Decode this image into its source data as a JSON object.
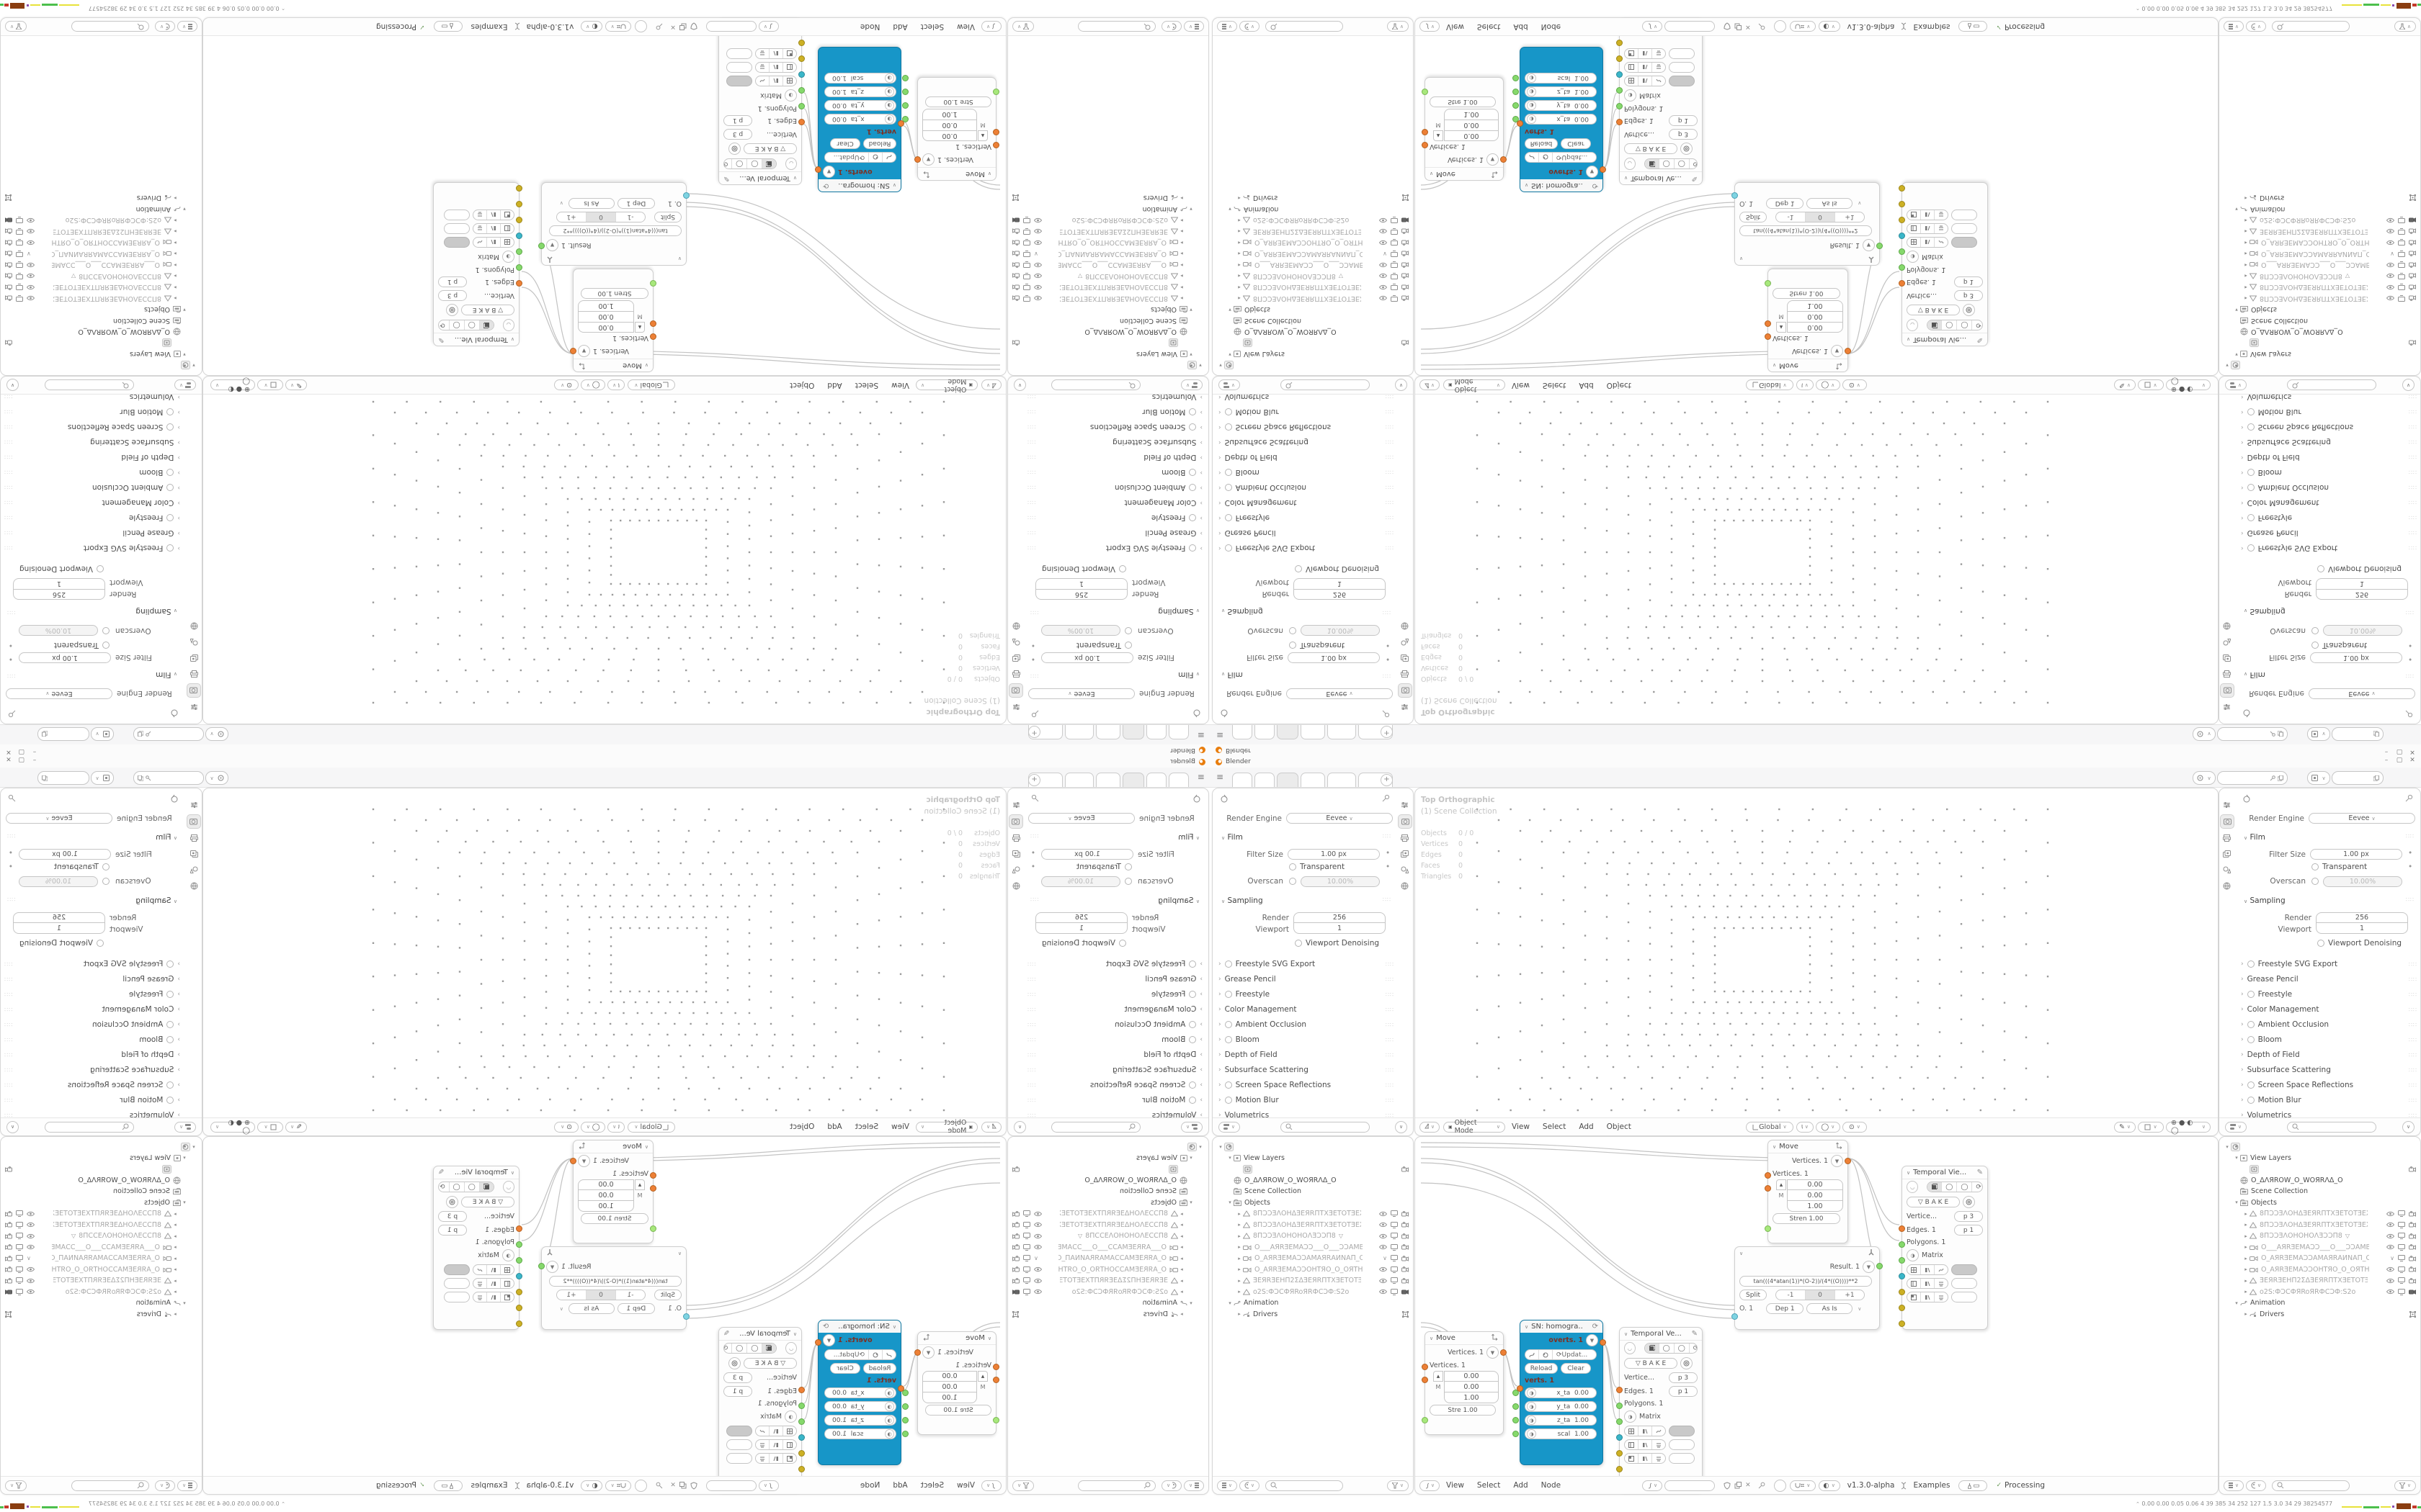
{
  "window": {
    "title": "Blender",
    "controls": [
      "–",
      "▢",
      "✕"
    ]
  },
  "topbar": {
    "tabs": [
      "",
      "",
      "",
      "",
      "",
      ""
    ],
    "active_tab": 2,
    "new_tab": "+"
  },
  "properties": {
    "engine_label": "Render Engine",
    "engine_value": "Eevee",
    "film": {
      "title": "Film",
      "filter_label": "Filter Size",
      "filter_value": "1.00 px",
      "transparent": "Transparent",
      "overscan_label": "Overscan",
      "overscan_value": "10.00%"
    },
    "sampling": {
      "title": "Sampling",
      "render_label": "Render",
      "render_value": "256",
      "viewport_label": "Viewport",
      "viewport_value": "1",
      "denoise": "Viewport Denoising"
    },
    "collapsed": [
      {
        "label": "Freestyle SVG Export",
        "cb": true
      },
      {
        "label": "Grease Pencil",
        "cb": false
      },
      {
        "label": "Freestyle",
        "cb": true
      },
      {
        "label": "Color Management",
        "cb": false
      },
      {
        "label": "Ambient Occlusion",
        "cb": true
      },
      {
        "label": "Bloom",
        "cb": true
      },
      {
        "label": "Depth of Field",
        "cb": false
      },
      {
        "label": "Subsurface Scattering",
        "cb": false
      },
      {
        "label": "Screen Space Reflections",
        "cb": true
      },
      {
        "label": "Motion Blur",
        "cb": true
      },
      {
        "label": "Volumetrics",
        "cb": false
      }
    ]
  },
  "viewport": {
    "overlay1": "Top Orthographic",
    "overlay2": "(1) Scene Collection",
    "stats": [
      {
        "l": "Objects",
        "v": "0 / 0"
      },
      {
        "l": "Vertices",
        "v": "0"
      },
      {
        "l": "Edges",
        "v": "0"
      },
      {
        "l": "Faces",
        "v": "0"
      },
      {
        "l": "Triangles",
        "v": "0"
      }
    ],
    "mode": "Object Mode",
    "menus": [
      "View",
      "Select",
      "Add",
      "Object"
    ],
    "orientation": "Global"
  },
  "outliner": {
    "search_placeholder": "",
    "tree": [
      {
        "d": 0,
        "icon": "blend",
        "label": "",
        "exp": "▾"
      },
      {
        "d": 1,
        "icon": "vlayer",
        "label": "View Layers",
        "exp": "▾"
      },
      {
        "d": 2,
        "icon": "vlayerbox",
        "label": "",
        "right": [
          "cam"
        ]
      },
      {
        "d": 1,
        "icon": "world",
        "label": "O_ΔΛЯROW_O_WOЯRΛΔ_O"
      },
      {
        "d": 1,
        "icon": "coll",
        "label": "Scene Collection"
      },
      {
        "d": 1,
        "icon": "coll",
        "label": "Objects",
        "exp": "▾"
      },
      {
        "d": 2,
        "icon": "mesh",
        "label": "8ΠƆƆƎΛΟΗΔƎΕЯRΠΤΧƎΕΤΟΤƎΕΧΙ",
        "exp": "▸",
        "faded": true,
        "right": [
          "eye",
          "scr",
          "cam"
        ]
      },
      {
        "d": 2,
        "icon": "mesh",
        "label": "8ΠƆƆƎΛΟΗΔƎΕЯRΠΤΧƎΕΤΟΤƎΕΧ",
        "exp": "▸",
        "faded": true,
        "right": [
          "eye",
          "scr",
          "cam"
        ]
      },
      {
        "d": 2,
        "icon": "mesh",
        "label": "8ΠƆƆƎΛΟΗΟΗΟΛƎƆƆΠ8",
        "tail": "▽",
        "exp": "▸",
        "faded": true,
        "right": [
          "eye",
          "scr",
          "cam"
        ]
      },
      {
        "d": 2,
        "icon": "camera",
        "label": "O___ΑЯRƎΕΜΑƆƆ___O___ƆƆΑΜΒƎ",
        "exp": "▸",
        "faded": true,
        "right": [
          "eye",
          "scr",
          "cam"
        ]
      },
      {
        "d": 2,
        "icon": "camera",
        "label": "O_ΑЯRƎΕΜΑƆƆΑΜΑЯRΑИΝΑΠ_O_",
        "exp": "▸",
        "faded": true,
        "right": [
          "chev",
          "scr",
          "cam"
        ]
      },
      {
        "d": 2,
        "icon": "camera",
        "label": "O_ΑЯRƎΕΜΑƆƆΟΗΤЯΟ_O_ΟЯΤΗΟ(",
        "exp": "▸",
        "faded": true,
        "right": [
          "eye",
          "scr",
          "cam"
        ]
      },
      {
        "d": 2,
        "icon": "mesh",
        "label": "ƎΕЯRƎΕΗΠ2ΣΔƎΕЯRΠΤΧƎΕΤΟΤƎΕ)",
        "exp": "▸",
        "faded": true,
        "right": [
          "eye",
          "scr",
          "cam"
        ]
      },
      {
        "d": 2,
        "icon": "mesh",
        "label": "o2S:ФƆϹФЯRoЯRФϹƆФ:S2o",
        "exp": "▸",
        "faded": true,
        "right": [
          "eye",
          "scr",
          "camdark"
        ]
      },
      {
        "d": 1,
        "icon": "anim",
        "label": "Animation",
        "exp": "▾"
      },
      {
        "d": 2,
        "icon": "drivers",
        "label": "Drivers",
        "exp": "▸",
        "right": [
          "box"
        ]
      }
    ]
  },
  "node_editor": {
    "menus": [
      "View",
      "Select",
      "Add",
      "Node"
    ],
    "version": "v1.3.0-alpha",
    "examples": "Examples",
    "processing": "Processing",
    "processing_check": "✓",
    "move1": {
      "title": "Move",
      "out": "Vertices. 1",
      "in1": "Vertices. 1",
      "v1": "0.00",
      "m": "M",
      "v2": "0.00",
      "v3": "1.00",
      "stren": "Stre  1.00"
    },
    "move2": {
      "title": "Move",
      "out": "Vertices. 1",
      "in1": "Vertices. 1",
      "v1": "0.00",
      "m": "M",
      "v2": "0.00",
      "v3": "1.00",
      "stren": "Stren  1.00"
    },
    "sn": {
      "title": "SN: homogra..",
      "out": "overts. 1",
      "update": "Updat...",
      "reload": "Reload",
      "clear": "Clear",
      "verts": "verts. 1",
      "rows": [
        {
          "l": "x_ta",
          "v": "0.00"
        },
        {
          "l": "y_ta",
          "v": "0.00"
        },
        {
          "l": "z_ta",
          "v": "1.00"
        },
        {
          "l": "scal",
          "v": "1.00"
        }
      ]
    },
    "tviewer1": {
      "title": "Temporal Ve...",
      "bake": "B A K E",
      "r1": "Vertice...",
      "r1v": "p  3",
      "r2": "Edges. 1",
      "r2v": "p  1",
      "r3": "Polygons. 1",
      "r4": "Matrix"
    },
    "tviewer2": {
      "title": "Temporal Vie...",
      "bake": "B A K E",
      "r1": "Vertice...",
      "r1v": "p  3",
      "r2": "Edges. 1",
      "r2v": "p  1",
      "r3": "Polygons. 1",
      "r4": "Matrix"
    },
    "formula": {
      "formula": "tan(((4*atan(1))*(O-2))/(4*((O))))**2",
      "split": "Split",
      "minus": "-1",
      "zero": "0",
      "plus": "+1",
      "o": "O. 1",
      "dep": "Dep  1",
      "asis": "As Is",
      "out": "Result. 1"
    }
  },
  "statusbar": {
    "numbers": "0.00 0.00 0.05 0.06   4   39   385   34   252   127   1.5   3.0   34   29   38254577"
  },
  "colors": {
    "accent_cyan": "#1796c8",
    "socket_orange": "#ed8036",
    "socket_green": "#86d96c",
    "socket_teal": "#3ab6c9",
    "socket_yellow": "#cdb125",
    "error_red": "#7e2f20"
  }
}
